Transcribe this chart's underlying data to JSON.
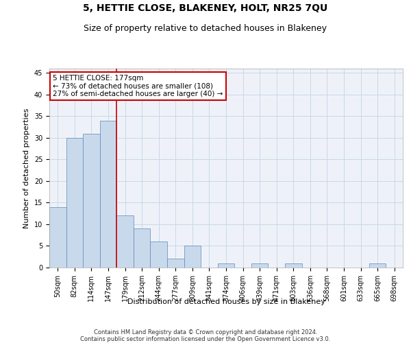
{
  "title": "5, HETTIE CLOSE, BLAKENEY, HOLT, NR25 7QU",
  "subtitle": "Size of property relative to detached houses in Blakeney",
  "xlabel": "Distribution of detached houses by size in Blakeney",
  "ylabel": "Number of detached properties",
  "categories": [
    "50sqm",
    "82sqm",
    "114sqm",
    "147sqm",
    "179sqm",
    "212sqm",
    "244sqm",
    "277sqm",
    "309sqm",
    "341sqm",
    "374sqm",
    "406sqm",
    "439sqm",
    "471sqm",
    "503sqm",
    "536sqm",
    "568sqm",
    "601sqm",
    "633sqm",
    "665sqm",
    "698sqm"
  ],
  "bar_values": [
    14,
    30,
    31,
    34,
    12,
    9,
    6,
    2,
    5,
    0,
    1,
    0,
    1,
    0,
    1,
    0,
    0,
    0,
    0,
    1,
    0
  ],
  "bar_color": "#c9d9ec",
  "bar_edge_color": "#5a87b8",
  "vline_x_index": 3.5,
  "vline_color": "#cc0000",
  "ylim": [
    0,
    46
  ],
  "yticks": [
    0,
    5,
    10,
    15,
    20,
    25,
    30,
    35,
    40,
    45
  ],
  "annotation_line1": "5 HETTIE CLOSE: 177sqm",
  "annotation_line2": "← 73% of detached houses are smaller (108)",
  "annotation_line3": "27% of semi-detached houses are larger (40) →",
  "annotation_box_color": "#cc0000",
  "footnote": "Contains HM Land Registry data © Crown copyright and database right 2024.\nContains public sector information licensed under the Open Government Licence v3.0.",
  "grid_color": "#c8d8e8",
  "bg_color": "#eef2f8",
  "title_fontsize": 10,
  "subtitle_fontsize": 9,
  "ylabel_fontsize": 8,
  "xlabel_fontsize": 8,
  "tick_fontsize": 7,
  "footnote_fontsize": 6
}
